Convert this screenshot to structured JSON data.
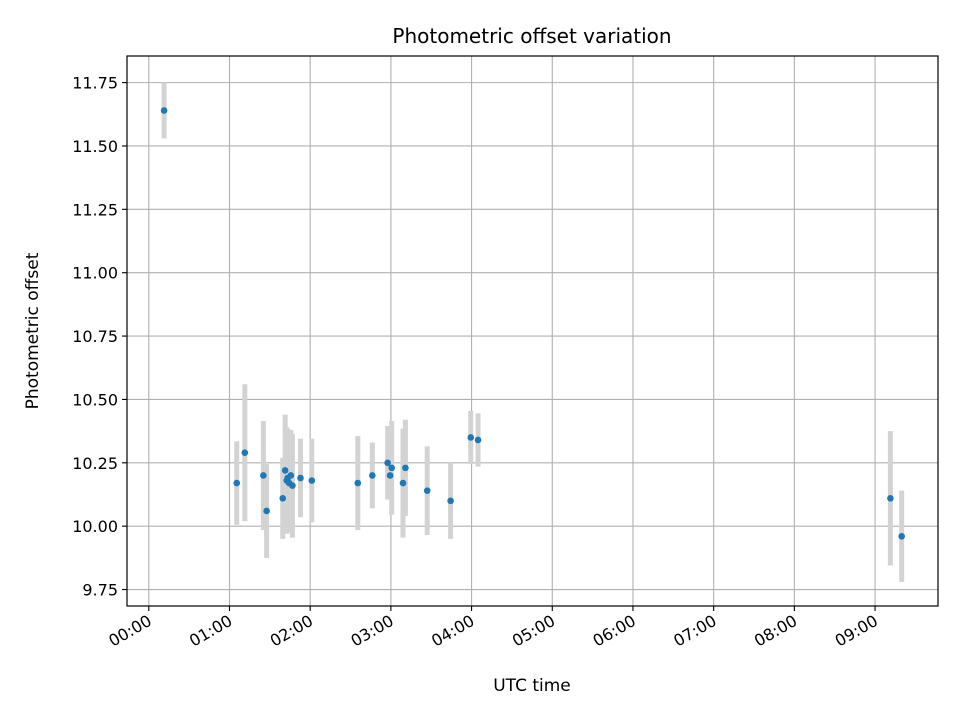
{
  "chart_data": {
    "type": "scatter",
    "title": "Photometric offset variation",
    "xlabel": "UTC time",
    "ylabel": "Photometric offset",
    "x_unit": "hours",
    "xlim": [
      -0.27,
      9.78
    ],
    "ylim": [
      9.685,
      11.855
    ],
    "xticks": [
      {
        "value": 0,
        "label": "00:00"
      },
      {
        "value": 1,
        "label": "01:00"
      },
      {
        "value": 2,
        "label": "02:00"
      },
      {
        "value": 3,
        "label": "03:00"
      },
      {
        "value": 4,
        "label": "04:00"
      },
      {
        "value": 5,
        "label": "05:00"
      },
      {
        "value": 6,
        "label": "06:00"
      },
      {
        "value": 7,
        "label": "07:00"
      },
      {
        "value": 8,
        "label": "08:00"
      },
      {
        "value": 9,
        "label": "09:00"
      }
    ],
    "yticks": [
      {
        "value": 9.75,
        "label": "9.75"
      },
      {
        "value": 10.0,
        "label": "10.00"
      },
      {
        "value": 10.25,
        "label": "10.25"
      },
      {
        "value": 10.5,
        "label": "10.50"
      },
      {
        "value": 10.75,
        "label": "10.75"
      },
      {
        "value": 11.0,
        "label": "11.00"
      },
      {
        "value": 11.25,
        "label": "11.25"
      },
      {
        "value": 11.5,
        "label": "11.50"
      },
      {
        "value": 11.75,
        "label": "11.75"
      }
    ],
    "grid": true,
    "colors": {
      "point": "#1f77b4",
      "errorbar": "#d3d3d3",
      "grid": "#b0b0b0"
    },
    "points": [
      {
        "x": 0.19,
        "y": 11.64,
        "yerr": 0.11
      },
      {
        "x": 1.09,
        "y": 10.17,
        "yerr": 0.165
      },
      {
        "x": 1.19,
        "y": 10.29,
        "yerr": 0.27
      },
      {
        "x": 1.42,
        "y": 10.2,
        "yerr": 0.215
      },
      {
        "x": 1.46,
        "y": 10.06,
        "yerr": 0.185
      },
      {
        "x": 1.66,
        "y": 10.11,
        "yerr": 0.16
      },
      {
        "x": 1.69,
        "y": 10.22,
        "yerr": 0.22
      },
      {
        "x": 1.71,
        "y": 10.18,
        "yerr": 0.21
      },
      {
        "x": 1.72,
        "y": 10.19,
        "yerr": 0.195
      },
      {
        "x": 1.74,
        "y": 10.17,
        "yerr": 0.195
      },
      {
        "x": 1.76,
        "y": 10.2,
        "yerr": 0.18
      },
      {
        "x": 1.78,
        "y": 10.16,
        "yerr": 0.205
      },
      {
        "x": 1.88,
        "y": 10.19,
        "yerr": 0.155
      },
      {
        "x": 2.02,
        "y": 10.18,
        "yerr": 0.165
      },
      {
        "x": 2.59,
        "y": 10.17,
        "yerr": 0.185
      },
      {
        "x": 2.77,
        "y": 10.2,
        "yerr": 0.13
      },
      {
        "x": 2.96,
        "y": 10.25,
        "yerr": 0.145
      },
      {
        "x": 2.99,
        "y": 10.2,
        "yerr": 0.085
      },
      {
        "x": 3.01,
        "y": 10.23,
        "yerr": 0.185
      },
      {
        "x": 3.15,
        "y": 10.17,
        "yerr": 0.215
      },
      {
        "x": 3.18,
        "y": 10.23,
        "yerr": 0.19
      },
      {
        "x": 3.45,
        "y": 10.14,
        "yerr": 0.175
      },
      {
        "x": 3.74,
        "y": 10.1,
        "yerr": 0.15
      },
      {
        "x": 3.99,
        "y": 10.35,
        "yerr": 0.105
      },
      {
        "x": 4.08,
        "y": 10.34,
        "yerr": 0.105
      },
      {
        "x": 9.19,
        "y": 10.11,
        "yerr": 0.265
      },
      {
        "x": 9.33,
        "y": 9.96,
        "yerr": 0.18
      }
    ]
  }
}
